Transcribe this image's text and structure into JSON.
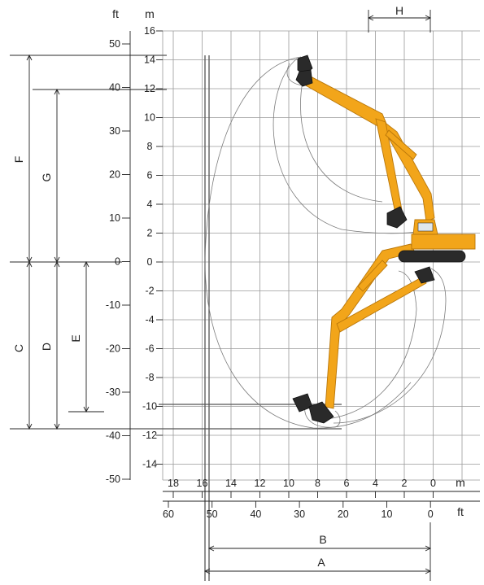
{
  "units": {
    "left_ft": "ft",
    "left_m": "m",
    "bottom_m": "m",
    "bottom_ft": "ft"
  },
  "scale_ft": [
    "50",
    "40",
    "30",
    "20",
    "10",
    "0",
    "-10",
    "-20",
    "-30",
    "-40",
    "-50"
  ],
  "scale_m": [
    "16",
    "14",
    "12",
    "10",
    "8",
    "6",
    "4",
    "2",
    "0",
    "-2",
    "-4",
    "-6",
    "-8",
    "-10",
    "-12",
    "-14"
  ],
  "scale_bottom_m": [
    "18",
    "16",
    "14",
    "12",
    "10",
    "8",
    "6",
    "4",
    "2",
    "0"
  ],
  "scale_bottom_ft": [
    "60",
    "50",
    "40",
    "30",
    "20",
    "10",
    "0"
  ],
  "dimension_labels": {
    "A": "A",
    "B": "B",
    "C": "C",
    "D": "D",
    "E": "E",
    "F": "F",
    "G": "G",
    "H": "H"
  },
  "colors": {
    "machine": "#f2a51a",
    "undercarriage": "#2a2a2a",
    "grid": "#9a9a9a"
  }
}
